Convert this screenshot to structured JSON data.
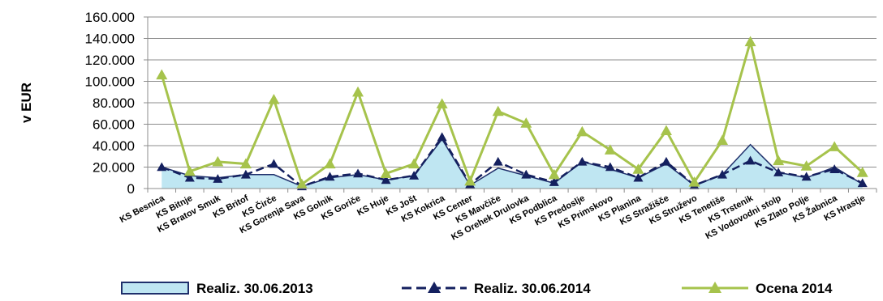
{
  "chart_data": {
    "type": "line",
    "ylabel": "v EUR",
    "ylim": [
      0,
      160000
    ],
    "yticks": [
      "0",
      "20.000",
      "40.000",
      "60.000",
      "80.000",
      "100.000",
      "120.000",
      "140.000",
      "160.000"
    ],
    "grid": true,
    "legend_position": "bottom",
    "categories": [
      "KS Besnica",
      "KS Bitnje",
      "KS Bratov Smuk",
      "KS Britof",
      "KS Čirče",
      "KS Gorenja Sava",
      "KS Golnik",
      "KS Goriče",
      "KS Huje",
      "KS Jošt",
      "KS Kokrica",
      "KS Center",
      "KS Mavčiče",
      "KS Orehek Drulovka",
      "KS Podblica",
      "KS Predoslje",
      "KS Primskovo",
      "KS Planina",
      "KS Stražišče",
      "KS Struževo",
      "KS Tenetiše",
      "KS Trstenik",
      "KS Vodovodni stolp",
      "KS Zlato Polje",
      "KS Žabnica",
      "KS Hrastje"
    ],
    "series": [
      {
        "name": "Realiz. 30.06.2013",
        "style": "area",
        "color": "#bfe6f2",
        "edge": "#1f2f6b",
        "values": [
          20000,
          12000,
          10000,
          13000,
          13000,
          2000,
          10000,
          13000,
          8000,
          12000,
          46000,
          3000,
          19000,
          12000,
          5000,
          25000,
          18000,
          10000,
          23000,
          3000,
          13000,
          41000,
          15000,
          10000,
          20000,
          4000
        ]
      },
      {
        "name": "Realiz. 30.06.2014",
        "style": "dashed-line-triangle",
        "color": "#14205f",
        "values": [
          20000,
          10000,
          9000,
          13000,
          23000,
          2000,
          11000,
          14000,
          8000,
          12000,
          48000,
          4000,
          25000,
          13000,
          6000,
          25000,
          20000,
          10000,
          25000,
          3000,
          13000,
          26000,
          15000,
          11000,
          18000,
          5000
        ]
      },
      {
        "name": "Ocena 2014",
        "style": "line-triangle",
        "color": "#a6c34c",
        "values": [
          106000,
          16000,
          25000,
          23000,
          83000,
          4000,
          23000,
          90000,
          14000,
          23000,
          79000,
          7000,
          72000,
          61000,
          13000,
          53000,
          36000,
          18000,
          54000,
          6000,
          45000,
          137000,
          26000,
          21000,
          39000,
          15000
        ]
      }
    ]
  }
}
